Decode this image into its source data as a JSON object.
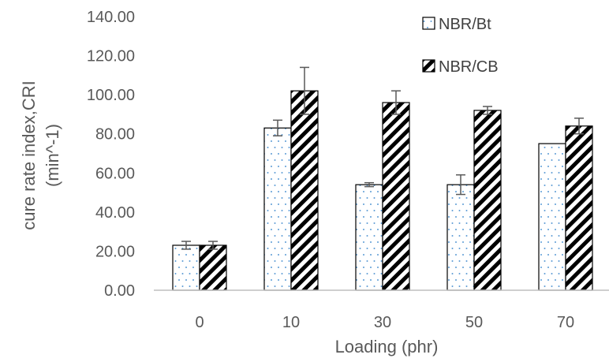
{
  "chart_data": {
    "type": "bar",
    "categories": [
      "0",
      "10",
      "30",
      "50",
      "70"
    ],
    "series": [
      {
        "name": "NBR/Bt",
        "pattern": "dots",
        "values": [
          23,
          83,
          54,
          54,
          75
        ],
        "errors": [
          2,
          4,
          1,
          5,
          0
        ]
      },
      {
        "name": "NBR/CB",
        "pattern": "hatch",
        "values": [
          23,
          102,
          96,
          92,
          84
        ],
        "errors": [
          2,
          12,
          6,
          2,
          4
        ]
      }
    ],
    "xlabel": "Loading (phr)",
    "ylabel_line1": "cure rate index,CRI",
    "ylabel_line2": "(min^-1)",
    "ylim": [
      0,
      140
    ],
    "yticks": [
      "0.00",
      "20.00",
      "40.00",
      "60.00",
      "80.00",
      "100.00",
      "120.00",
      "140.00"
    ],
    "ytick_values": [
      0,
      20,
      40,
      60,
      80,
      100,
      120,
      140
    ],
    "grid": false,
    "legend_position": "top-right",
    "colors": {
      "bar_border": "#000000",
      "dot_color": "#5b9bd5",
      "hatch_color": "#000000",
      "axis_line": "#bfbfbf",
      "text": "#595959",
      "error_bar": "#595959"
    }
  }
}
